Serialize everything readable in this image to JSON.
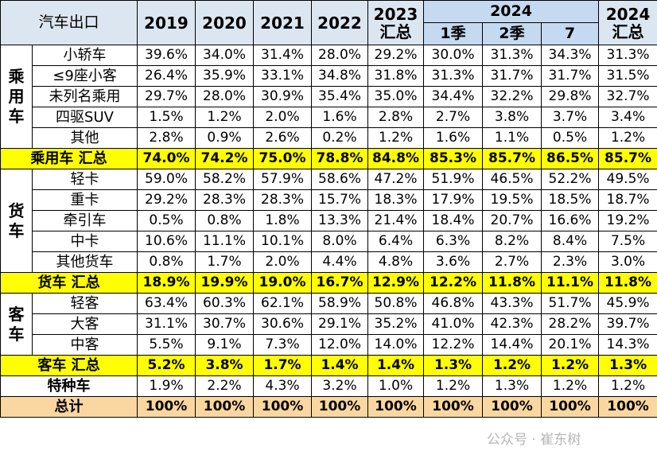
{
  "header": {
    "corner": "汽车出口",
    "years": [
      "2019",
      "2020",
      "2021",
      "2022"
    ],
    "col2023": [
      "2023",
      "汇总"
    ],
    "group2024": "2024",
    "sub2024": [
      "1季",
      "2季",
      "7"
    ],
    "col2024": [
      "2024",
      "汇总"
    ]
  },
  "sections": [
    {
      "group": "乘用车",
      "rows": [
        {
          "label": "小轿车",
          "values": [
            "39.6%",
            "34.0%",
            "31.4%",
            "28.0%",
            "29.2%",
            "30.0%",
            "31.3%",
            "34.3%",
            "31.3%"
          ]
        },
        {
          "label": "≤9座小客",
          "values": [
            "26.4%",
            "35.9%",
            "33.1%",
            "34.8%",
            "31.8%",
            "31.3%",
            "31.7%",
            "31.7%",
            "31.5%"
          ]
        },
        {
          "label": "未列名乘用",
          "values": [
            "29.7%",
            "28.0%",
            "30.9%",
            "35.4%",
            "35.0%",
            "34.4%",
            "32.2%",
            "29.8%",
            "32.7%"
          ]
        },
        {
          "label": "四驱SUV",
          "values": [
            "1.5%",
            "1.2%",
            "2.0%",
            "1.6%",
            "2.8%",
            "2.7%",
            "3.8%",
            "3.7%",
            "3.4%"
          ]
        },
        {
          "label": "其他",
          "values": [
            "2.8%",
            "0.9%",
            "2.6%",
            "0.2%",
            "1.2%",
            "1.6%",
            "1.1%",
            "0.5%",
            "1.2%"
          ]
        }
      ],
      "total": {
        "label": "乘用车 汇总",
        "values": [
          "74.0%",
          "74.2%",
          "75.0%",
          "78.8%",
          "84.8%",
          "85.3%",
          "85.7%",
          "86.5%",
          "85.7%"
        ]
      }
    },
    {
      "group": "货车",
      "rows": [
        {
          "label": "轻卡",
          "values": [
            "59.0%",
            "58.2%",
            "57.9%",
            "58.6%",
            "47.2%",
            "51.9%",
            "46.5%",
            "52.2%",
            "49.5%"
          ]
        },
        {
          "label": "重卡",
          "values": [
            "29.2%",
            "28.3%",
            "28.3%",
            "15.7%",
            "18.3%",
            "17.9%",
            "19.5%",
            "18.5%",
            "18.7%"
          ]
        },
        {
          "label": "牵引车",
          "values": [
            "0.5%",
            "0.8%",
            "1.8%",
            "13.3%",
            "21.4%",
            "18.4%",
            "20.7%",
            "16.6%",
            "19.2%"
          ]
        },
        {
          "label": "中卡",
          "values": [
            "10.6%",
            "11.1%",
            "10.1%",
            "8.0%",
            "6.4%",
            "6.3%",
            "8.2%",
            "8.4%",
            "7.5%"
          ]
        },
        {
          "label": "其他货车",
          "values": [
            "0.8%",
            "1.7%",
            "2.0%",
            "4.4%",
            "4.8%",
            "3.6%",
            "2.7%",
            "2.3%",
            "3.0%"
          ]
        }
      ],
      "total": {
        "label": "货车 汇总",
        "values": [
          "18.9%",
          "19.9%",
          "19.0%",
          "16.7%",
          "12.9%",
          "12.2%",
          "11.8%",
          "11.1%",
          "11.8%"
        ]
      }
    },
    {
      "group": "客车",
      "rows": [
        {
          "label": "轻客",
          "values": [
            "63.4%",
            "60.3%",
            "62.1%",
            "58.9%",
            "50.8%",
            "46.8%",
            "43.3%",
            "51.7%",
            "45.9%"
          ]
        },
        {
          "label": "大客",
          "values": [
            "31.1%",
            "30.7%",
            "30.6%",
            "29.1%",
            "35.2%",
            "41.0%",
            "42.3%",
            "28.2%",
            "39.7%"
          ]
        },
        {
          "label": "中客",
          "values": [
            "5.5%",
            "9.1%",
            "7.3%",
            "12.0%",
            "14.0%",
            "12.2%",
            "14.4%",
            "20.1%",
            "14.3%"
          ]
        }
      ],
      "total": {
        "label": "客车 汇总",
        "values": [
          "5.2%",
          "3.8%",
          "1.7%",
          "1.4%",
          "1.4%",
          "1.3%",
          "1.2%",
          "1.2%",
          "1.3%"
        ]
      }
    }
  ],
  "special": {
    "label": "特种车",
    "values": [
      "1.9%",
      "2.2%",
      "4.3%",
      "3.2%",
      "1.0%",
      "1.2%",
      "1.3%",
      "1.2%",
      "1.2%"
    ]
  },
  "grand_total": {
    "label": "总计",
    "values": [
      "100%",
      "100%",
      "100%",
      "100%",
      "100%",
      "100%",
      "100%",
      "100%",
      "100%"
    ]
  },
  "watermark": "公众号 · 崔东树"
}
